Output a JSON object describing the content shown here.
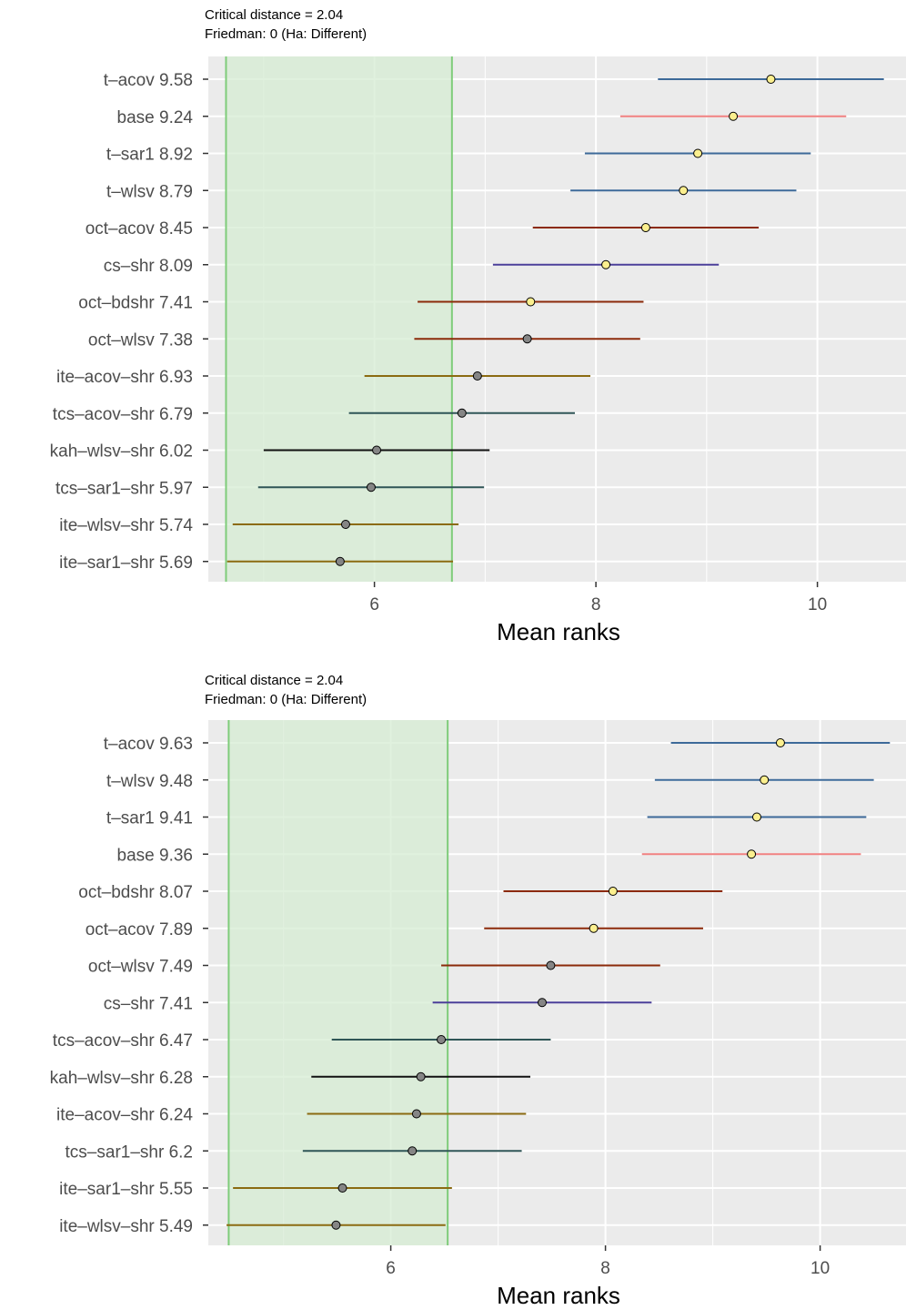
{
  "chart_data": [
    {
      "type": "scatter",
      "subtitle_line1": "Critical distance = 2.04",
      "subtitle_line2": "Friedman: 0 (Ha: Different)",
      "xlabel": "Mean ranks",
      "ylabel": "",
      "xlim": [
        4.5,
        10.8
      ],
      "xticks": [
        "6",
        "8",
        "10"
      ],
      "xtick_values": [
        6,
        8,
        10
      ],
      "critical_distance": 2.04,
      "band": [
        4.66,
        6.7
      ],
      "grid": true,
      "categories": [
        "t–acov 9.58",
        "base 9.24",
        "t–sar1 8.92",
        "t–wlsv 8.79",
        "oct–acov 8.45",
        "cs–shr 8.09",
        "oct–bdshr 7.41",
        "oct–wlsv 7.38",
        "ite–acov–shr 6.93",
        "tcs–acov–shr 6.79",
        "kah–wlsv–shr 6.02",
        "tcs–sar1–shr 5.97",
        "ite–wlsv–shr 5.74",
        "ite–sar1–shr 5.69"
      ],
      "values": [
        9.58,
        9.24,
        8.92,
        8.79,
        8.45,
        8.09,
        7.41,
        7.38,
        6.93,
        6.79,
        6.02,
        5.97,
        5.74,
        5.69
      ],
      "colors": [
        "#3d6a99",
        "#f08080",
        "#3d6a99",
        "#3d6a99",
        "#8b2a0a",
        "#4b3f99",
        "#8b2a0a",
        "#8b2a0a",
        "#8b6b12",
        "#2f5556",
        "#111111",
        "#2f5556",
        "#8b6b12",
        "#8b6b12"
      ],
      "significant": [
        true,
        true,
        true,
        true,
        true,
        true,
        true,
        false,
        false,
        false,
        false,
        false,
        false,
        false
      ]
    },
    {
      "type": "scatter",
      "subtitle_line1": "Critical distance = 2.04",
      "subtitle_line2": "Friedman: 0 (Ha: Different)",
      "xlabel": "Mean ranks",
      "ylabel": "",
      "xlim": [
        4.3,
        10.8
      ],
      "xticks": [
        "6",
        "8",
        "10"
      ],
      "xtick_values": [
        6,
        8,
        10
      ],
      "critical_distance": 2.04,
      "band": [
        4.49,
        6.53
      ],
      "grid": true,
      "categories": [
        "t–acov 9.63",
        "t–wlsv 9.48",
        "t–sar1 9.41",
        "base 9.36",
        "oct–bdshr 8.07",
        "oct–acov 7.89",
        "oct–wlsv 7.49",
        "cs–shr 7.41",
        "tcs–acov–shr 6.47",
        "kah–wlsv–shr 6.28",
        "ite–acov–shr 6.24",
        "tcs–sar1–shr 6.2",
        "ite–sar1–shr 5.55",
        "ite–wlsv–shr 5.49"
      ],
      "values": [
        9.63,
        9.48,
        9.41,
        9.36,
        8.07,
        7.89,
        7.49,
        7.41,
        6.47,
        6.28,
        6.24,
        6.2,
        5.55,
        5.49
      ],
      "colors": [
        "#3d6a99",
        "#3d6a99",
        "#3d6a99",
        "#f08080",
        "#8b2a0a",
        "#8b2a0a",
        "#8b2a0a",
        "#4b3f99",
        "#2f5556",
        "#111111",
        "#8b6b12",
        "#2f5556",
        "#8b6b12",
        "#8b6b12"
      ],
      "significant": [
        true,
        true,
        true,
        true,
        true,
        true,
        false,
        false,
        false,
        false,
        false,
        false,
        false,
        false
      ]
    }
  ],
  "colors": {
    "panel_background": "#ebebeb",
    "grid_line": "#ffffff",
    "band_fill": "#d5ecd3",
    "band_edge": "#7fcc7a",
    "point_significant": "#fbef8e",
    "point_not_significant": "#858585",
    "text": "#4d4d4d"
  }
}
